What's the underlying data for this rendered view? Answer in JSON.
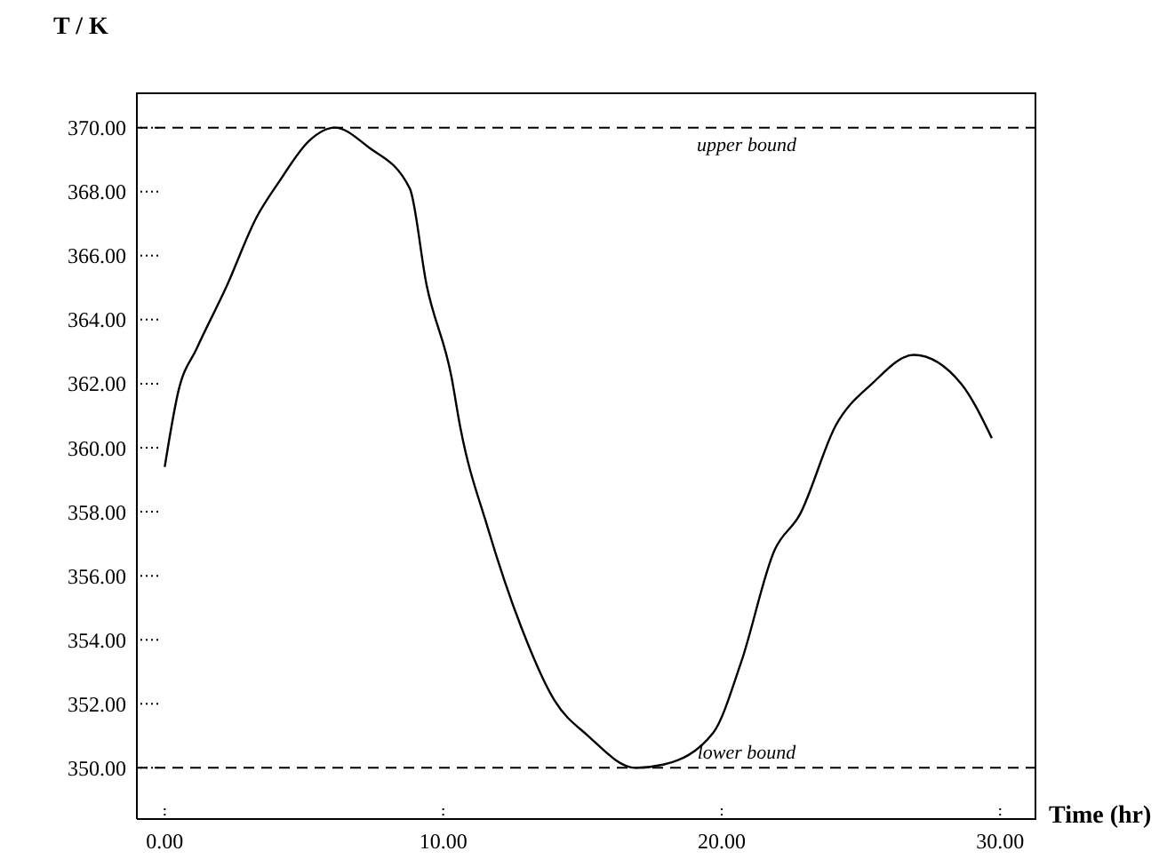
{
  "chart_data": {
    "type": "line",
    "xlabel": "Time (hr)",
    "ylabel": "T / K",
    "x": [
      0,
      0.5,
      1.15,
      2.2,
      3.3,
      4.1,
      5.2,
      6.1,
      7.3,
      8.8,
      9.4,
      10.3,
      10.6,
      11.6,
      12.8,
      14.0,
      15.2,
      16.9,
      17.9,
      19.7,
      20.7,
      21.9,
      22.8,
      24.1,
      25.4,
      26.9,
      28.6,
      29.7
    ],
    "series": [
      {
        "color": "#000000",
        "values": [
          359.4,
          361.8,
          363.1,
          365.0,
          367.2,
          368.3,
          369.6,
          370.0,
          369.4,
          368.1,
          365.1,
          362.2,
          360.7,
          357.5,
          354.4,
          352.1,
          351.0,
          350.0,
          350.1,
          351.1,
          353.3,
          356.8,
          357.9,
          360.7,
          362.0,
          362.9,
          362.0,
          360.3
        ]
      }
    ],
    "xlim": [
      -1,
      31.3
    ],
    "ylim": [
      348.4,
      371.1
    ],
    "xticks": [
      {
        "value": 0,
        "label": "0.00"
      },
      {
        "value": 10,
        "label": "10.00"
      },
      {
        "value": 20,
        "label": "20.00"
      },
      {
        "value": 30,
        "label": "30.00"
      }
    ],
    "yticks": [
      {
        "value": 350,
        "label": "350.00"
      },
      {
        "value": 352,
        "label": "352.00"
      },
      {
        "value": 354,
        "label": "354.00"
      },
      {
        "value": 356,
        "label": "356.00"
      },
      {
        "value": 358,
        "label": "358.00"
      },
      {
        "value": 360,
        "label": "360.00"
      },
      {
        "value": 362,
        "label": "362.00"
      },
      {
        "value": 364,
        "label": "364.00"
      },
      {
        "value": 366,
        "label": "366.00"
      },
      {
        "value": 368,
        "label": "368.00"
      },
      {
        "value": 370,
        "label": "370.00"
      }
    ],
    "ref_lines": [
      {
        "axis": "y",
        "value": 370,
        "label": "upper bound",
        "line_style": "dashed"
      },
      {
        "axis": "y",
        "value": 350,
        "label": "lower bound",
        "line_style": "dashed"
      }
    ],
    "grid": false,
    "legend": false,
    "marker": "none",
    "line_style": "solid"
  }
}
